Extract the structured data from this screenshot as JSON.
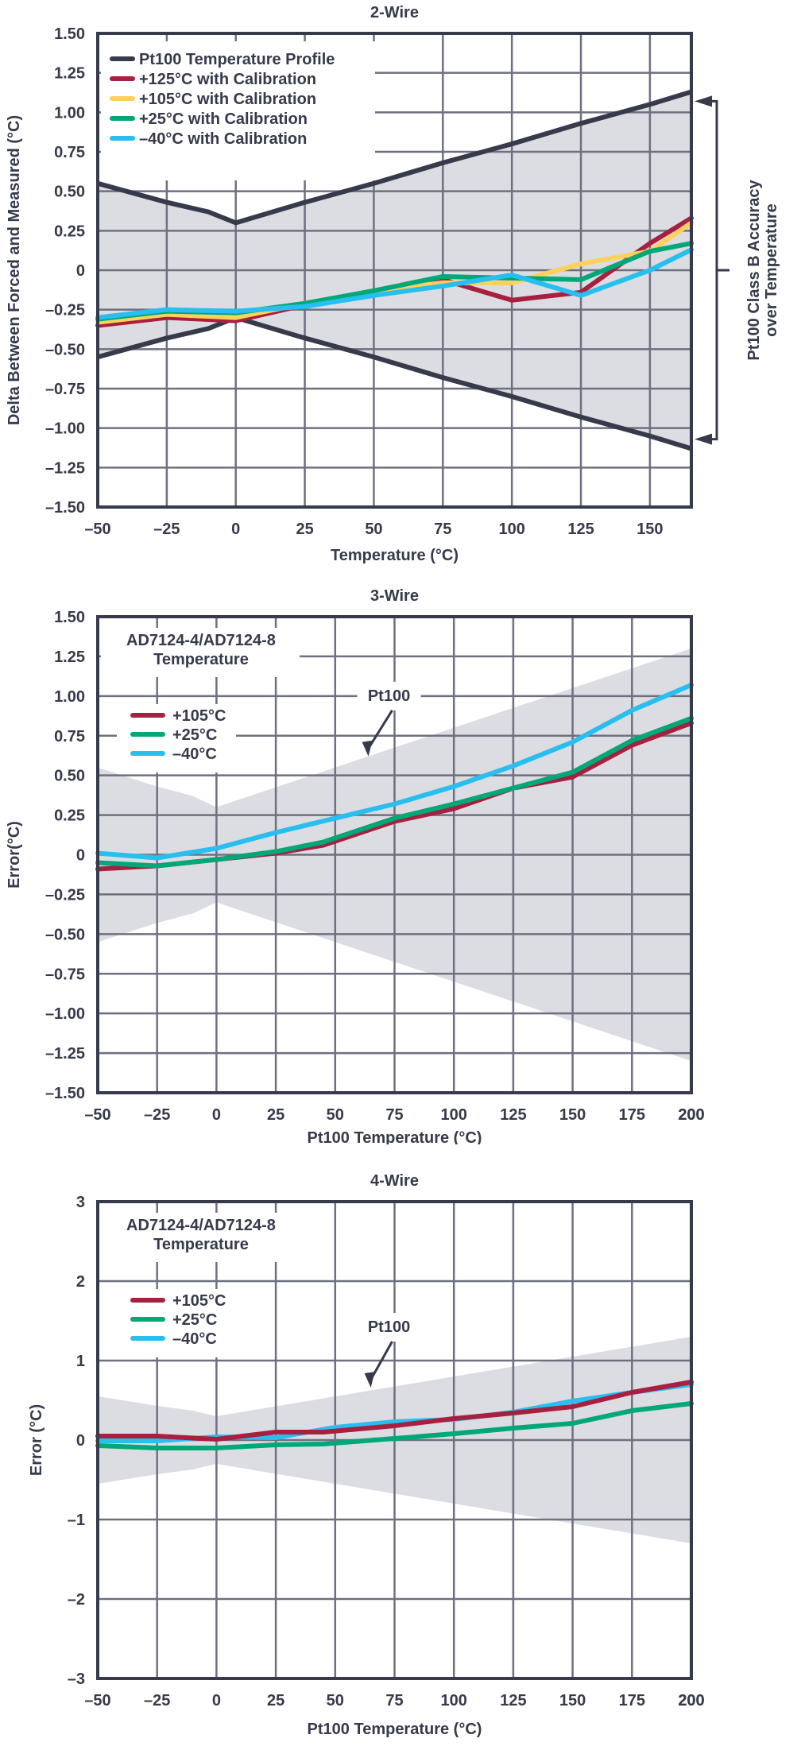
{
  "colors": {
    "axis": "#363a4a",
    "grid": "#6e7080",
    "band": "#dcdde2",
    "profile": "#363a4a",
    "red": "#a8203f",
    "yellow": "#fdd15c",
    "green": "#00a878",
    "cyan": "#28bef0"
  },
  "chart_data": [
    {
      "id": "two-wire",
      "type": "line",
      "title": "2-Wire",
      "xlabel": "Temperature (°C)",
      "ylabel": "Delta Between Forced and Measured (°C)",
      "xlim": [
        -50,
        165
      ],
      "ylim": [
        -1.5,
        1.5
      ],
      "xticks": [
        -50,
        -25,
        0,
        25,
        50,
        75,
        100,
        125,
        150
      ],
      "yticks": [
        1.5,
        1.25,
        1.0,
        0.75,
        0.5,
        0.25,
        0,
        -0.25,
        -0.5,
        -0.75,
        -1.0,
        -1.25,
        -1.5
      ],
      "ytick_labels": [
        "1.50",
        "1.25",
        "1.00",
        "0.75",
        "0.50",
        "0.25",
        "0",
        "-0.25",
        "-0.50",
        "-0.75",
        "-1.00",
        "-1.25",
        "-1.50"
      ],
      "grid": true,
      "legend_position": "upper-left",
      "band": {
        "name": "Pt100 Temperature Profile",
        "x": [
          -50,
          -25,
          -10,
          0,
          25,
          50,
          75,
          100,
          125,
          150,
          165
        ],
        "upper": [
          0.55,
          0.43,
          0.37,
          0.3,
          0.43,
          0.55,
          0.68,
          0.8,
          0.93,
          1.05,
          1.13
        ],
        "lower": [
          -0.55,
          -0.43,
          -0.37,
          -0.3,
          -0.43,
          -0.55,
          -0.68,
          -0.8,
          -0.93,
          -1.05,
          -1.13
        ],
        "draw_edges": true
      },
      "series": [
        {
          "name": "+125°C with Calibration",
          "color": "red",
          "x": [
            -50,
            -25,
            0,
            25,
            50,
            75,
            100,
            125,
            150,
            165
          ],
          "values": [
            -0.35,
            -0.3,
            -0.32,
            -0.22,
            -0.14,
            -0.06,
            -0.19,
            -0.14,
            0.17,
            0.33
          ]
        },
        {
          "name": "+105°C with Calibration",
          "color": "yellow",
          "x": [
            -50,
            -25,
            0,
            25,
            50,
            75,
            100,
            125,
            150,
            165
          ],
          "values": [
            -0.33,
            -0.28,
            -0.3,
            -0.21,
            -0.13,
            -0.08,
            -0.08,
            0.04,
            0.12,
            0.3
          ]
        },
        {
          "name": "+25°C with Calibration",
          "color": "green",
          "x": [
            -50,
            -25,
            0,
            25,
            50,
            75,
            100,
            125,
            150,
            165
          ],
          "values": [
            -0.31,
            -0.26,
            -0.27,
            -0.21,
            -0.13,
            -0.04,
            -0.05,
            -0.06,
            0.12,
            0.17
          ]
        },
        {
          "name": "-40°C with Calibration",
          "color": "cyan",
          "x": [
            -50,
            -25,
            0,
            25,
            50,
            75,
            100,
            125,
            150,
            165
          ],
          "values": [
            -0.3,
            -0.25,
            -0.26,
            -0.23,
            -0.16,
            -0.1,
            -0.03,
            -0.16,
            0.0,
            0.13
          ]
        }
      ],
      "legend": [
        {
          "label": "Pt100 Temperature Profile",
          "color": "profile"
        },
        {
          "label": "+125°C with Calibration",
          "color": "red"
        },
        {
          "label": "+105°C with Calibration",
          "color": "yellow"
        },
        {
          "label": "+25°C with Calibration",
          "color": "green"
        },
        {
          "label": "-40°C with Calibration",
          "color": "cyan"
        }
      ],
      "annotation": {
        "line1": "Pt100 Class B Accuracy",
        "line2": "over Temperature"
      }
    },
    {
      "id": "three-wire",
      "type": "line",
      "title": "3-Wire",
      "xlabel": "Pt100 Temperature (°C)",
      "ylabel": "Error(°C)",
      "xlim": [
        -50,
        200
      ],
      "ylim": [
        -1.5,
        1.5
      ],
      "xticks": [
        -50,
        -25,
        0,
        25,
        50,
        75,
        100,
        125,
        150,
        175,
        200
      ],
      "yticks": [
        1.5,
        1.25,
        1.0,
        0.75,
        0.5,
        0.25,
        0,
        -0.25,
        -0.5,
        -0.75,
        -1.0,
        -1.25,
        -1.5
      ],
      "ytick_labels": [
        "1.50",
        "1.25",
        "1.00",
        "0.75",
        "0.50",
        "0.25",
        "0",
        "-0.25",
        "-0.50",
        "-0.75",
        "-1.00",
        "-1.25",
        "-1.50"
      ],
      "grid": true,
      "legend_position": "upper-left",
      "band": {
        "name": "Pt100",
        "x": [
          -50,
          -25,
          -10,
          0,
          200
        ],
        "upper": [
          0.55,
          0.43,
          0.37,
          0.3,
          1.3
        ],
        "lower": [
          -0.55,
          -0.43,
          -0.37,
          -0.3,
          -1.3
        ],
        "draw_edges": false
      },
      "series": [
        {
          "name": "+105°C",
          "color": "red",
          "x": [
            -50,
            -25,
            0,
            25,
            45,
            75,
            100,
            125,
            150,
            175,
            200
          ],
          "values": [
            -0.09,
            -0.07,
            -0.03,
            0.01,
            0.06,
            0.21,
            0.29,
            0.42,
            0.49,
            0.69,
            0.83
          ]
        },
        {
          "name": "+25°C",
          "color": "green",
          "x": [
            -50,
            -25,
            0,
            25,
            45,
            75,
            100,
            125,
            150,
            175,
            200
          ],
          "values": [
            -0.05,
            -0.07,
            -0.03,
            0.02,
            0.08,
            0.23,
            0.32,
            0.42,
            0.52,
            0.72,
            0.86
          ]
        },
        {
          "name": "-40°C",
          "color": "cyan",
          "x": [
            -50,
            -25,
            0,
            25,
            50,
            75,
            100,
            125,
            150,
            175,
            200
          ],
          "values": [
            0.01,
            -0.02,
            0.04,
            0.14,
            0.23,
            0.32,
            0.43,
            0.56,
            0.71,
            0.91,
            1.07
          ]
        }
      ],
      "legend_title": {
        "line1": "AD7124-4/AD7124-8",
        "line2": "Temperature"
      },
      "legend": [
        {
          "label": "+105°C",
          "color": "red"
        },
        {
          "label": "+25°C",
          "color": "green"
        },
        {
          "label": "-40°C",
          "color": "cyan"
        }
      ],
      "annotation": {
        "label": "Pt100"
      }
    },
    {
      "id": "four-wire",
      "type": "line",
      "title": "4-Wire",
      "xlabel": "Pt100 Temperature (°C)",
      "ylabel": "Error (°C)",
      "xlim": [
        -50,
        200
      ],
      "ylim": [
        -3,
        3
      ],
      "xticks": [
        -50,
        -25,
        0,
        25,
        50,
        75,
        100,
        125,
        150,
        175,
        200
      ],
      "yticks": [
        3,
        2,
        1,
        0,
        -1,
        -2,
        -3
      ],
      "ytick_labels": [
        "3",
        "2",
        "1",
        "0",
        "-1",
        "-2",
        "-3"
      ],
      "grid": true,
      "legend_position": "upper-left",
      "band": {
        "name": "Pt100",
        "x": [
          -50,
          -25,
          -10,
          0,
          200
        ],
        "upper": [
          0.55,
          0.43,
          0.37,
          0.3,
          1.3
        ],
        "lower": [
          -0.55,
          -0.43,
          -0.37,
          -0.3,
          -1.3
        ],
        "draw_edges": false
      },
      "series": [
        {
          "name": "-40°C",
          "color": "cyan",
          "x": [
            -50,
            -25,
            0,
            25,
            50,
            75,
            100,
            125,
            150,
            175,
            200
          ],
          "values": [
            -0.01,
            -0.01,
            0.04,
            0.03,
            0.16,
            0.23,
            0.26,
            0.35,
            0.49,
            0.6,
            0.7
          ]
        },
        {
          "name": "+105°C",
          "color": "red",
          "x": [
            -50,
            -25,
            0,
            25,
            45,
            75,
            100,
            125,
            150,
            175,
            200
          ],
          "values": [
            0.05,
            0.05,
            0.01,
            0.1,
            0.1,
            0.18,
            0.27,
            0.34,
            0.42,
            0.6,
            0.73
          ]
        },
        {
          "name": "+25°C",
          "color": "green",
          "x": [
            -50,
            -25,
            0,
            25,
            45,
            75,
            100,
            125,
            150,
            175,
            200
          ],
          "values": [
            -0.07,
            -0.1,
            -0.1,
            -0.06,
            -0.05,
            0.02,
            0.08,
            0.15,
            0.21,
            0.37,
            0.46
          ]
        }
      ],
      "legend_title": {
        "line1": "AD7124-4/AD7124-8",
        "line2": "Temperature"
      },
      "legend": [
        {
          "label": "+105°C",
          "color": "red"
        },
        {
          "label": "+25°C",
          "color": "green"
        },
        {
          "label": "-40°C",
          "color": "cyan"
        }
      ],
      "annotation": {
        "label": "Pt100"
      }
    }
  ]
}
